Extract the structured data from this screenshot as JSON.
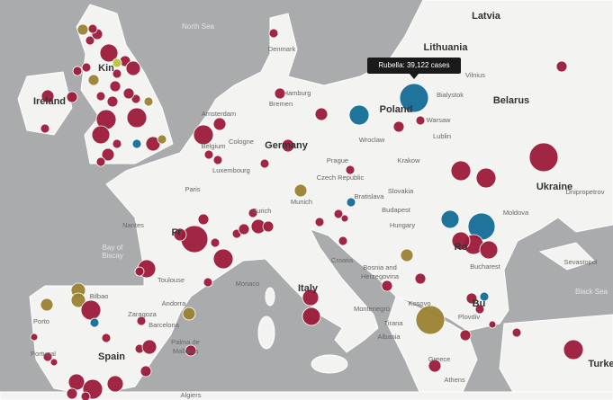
{
  "tooltip": "Rubella: 39,122 cases",
  "labels": [
    "Latvia",
    "North Sea",
    "Lithuania",
    "Denmark",
    "Vilnius",
    "Belarus",
    "Kin",
    "Ireland",
    "Hamburg",
    "Bremen",
    "Amsterdam",
    "Poland",
    "Bialystok",
    "Warsaw",
    "Germany",
    "Cologne",
    "Belgium",
    "Wroclaw",
    "Lublin",
    "Luxembourg",
    "Prague",
    "Krakow",
    "Czech Republic",
    "Paris",
    "Slovakia",
    "Bratislava",
    "Ukraine",
    "Dnipropetrov",
    "Moldova",
    "Munich",
    "Zurich",
    "Budapest",
    "Hungary",
    "Nantes",
    "Bay of",
    "Biscay",
    "Fr",
    "Croatia",
    "Ro",
    "Bucharest",
    "Sevastopol",
    "Bosnia and",
    "Herzegovina",
    "Toulouse",
    "Monaco",
    "Andorra",
    "Italy",
    "Black Sea",
    "Bilbao",
    "Kosovo",
    "Montenegro",
    "Zaragoza",
    "Barcelona",
    "Porto",
    "Tirana",
    "Plovdiv",
    "Albania",
    "Bu",
    "Palma de",
    "Mallorca",
    "Portugal",
    "Spain",
    "Greece",
    "Athens",
    "Turke",
    "Algiers"
  ]
}
